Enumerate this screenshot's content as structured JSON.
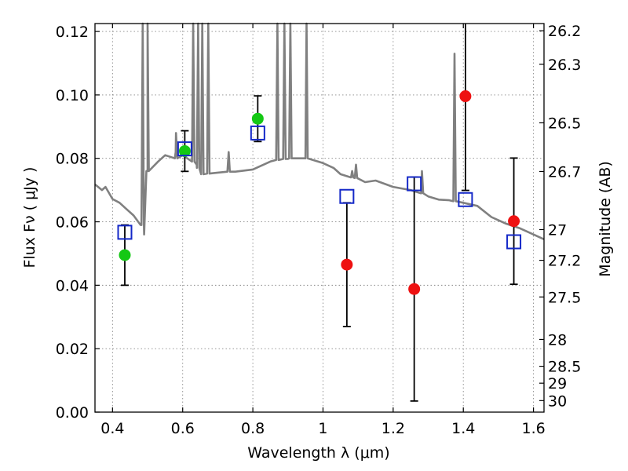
{
  "chart_data": {
    "type": "scatter",
    "title": "",
    "xlabel": "Wavelength  λ (μm)",
    "ylabel": "Flux  Fν  ( μJy )",
    "y2label": "Magnitude (AB)",
    "xlim": [
      0.35,
      1.63
    ],
    "ylim": [
      0.0,
      0.1225
    ],
    "grid": true,
    "x_ticks": [
      0.4,
      0.6,
      0.8,
      1.0,
      1.2,
      1.4,
      1.6
    ],
    "x_tick_labels": [
      "0.4",
      "0.6",
      "0.8",
      "1",
      "1.2",
      "1.4",
      "1.6"
    ],
    "y_ticks": [
      0.0,
      0.02,
      0.04,
      0.06,
      0.08,
      0.1,
      0.12
    ],
    "y_tick_labels": [
      "0.00",
      "0.02",
      "0.04",
      "0.06",
      "0.08",
      "0.10",
      "0.12"
    ],
    "y2_ticks": [
      26.2,
      26.3,
      26.5,
      26.7,
      27,
      27.2,
      27.5,
      28,
      28.5,
      29,
      30
    ],
    "y2_tick_labels": [
      "26.2",
      "26.3",
      "26.5",
      "26.7",
      "27",
      "27.2",
      "27.5",
      "28",
      "28.5",
      "29",
      "30"
    ],
    "colors": {
      "detection_green": "#14c814",
      "detection_red": "#ee1111",
      "model_box": "#1428c8",
      "errorbar": "#000000",
      "spectrum": "#808080",
      "grid": "#888888"
    },
    "observed_points": [
      {
        "x": 0.435,
        "y": 0.0495,
        "err": 0.0095,
        "color": "green"
      },
      {
        "x": 0.606,
        "y": 0.0823,
        "err": 0.0064,
        "color": "green"
      },
      {
        "x": 0.814,
        "y": 0.0925,
        "err": 0.0072,
        "color": "green"
      },
      {
        "x": 1.068,
        "y": 0.0465,
        "err": 0.0195,
        "color": "red"
      },
      {
        "x": 1.26,
        "y": 0.0388,
        "err": 0.0353,
        "color": "red"
      },
      {
        "x": 1.406,
        "y": 0.0996,
        "err": 0.0297,
        "color": "red"
      },
      {
        "x": 1.544,
        "y": 0.0602,
        "err": 0.0199,
        "color": "red"
      }
    ],
    "model_photometry": [
      {
        "x": 0.435,
        "y": 0.0567
      },
      {
        "x": 0.606,
        "y": 0.083
      },
      {
        "x": 0.814,
        "y": 0.088
      },
      {
        "x": 1.068,
        "y": 0.068
      },
      {
        "x": 1.26,
        "y": 0.072
      },
      {
        "x": 1.406,
        "y": 0.067
      },
      {
        "x": 1.544,
        "y": 0.0537
      }
    ],
    "model_spectrum": {
      "continuum": [
        [
          0.35,
          0.0718
        ],
        [
          0.37,
          0.07
        ],
        [
          0.38,
          0.071
        ],
        [
          0.4,
          0.0672
        ],
        [
          0.42,
          0.066
        ],
        [
          0.44,
          0.064
        ],
        [
          0.46,
          0.062
        ],
        [
          0.48,
          0.059
        ],
        [
          0.49,
          0.056
        ],
        [
          0.5,
          0.076
        ],
        [
          0.53,
          0.079
        ],
        [
          0.55,
          0.081
        ],
        [
          0.58,
          0.082
        ],
        [
          0.6,
          0.081
        ],
        [
          0.64,
          0.078
        ],
        [
          0.66,
          0.075
        ],
        [
          0.7,
          0.0755
        ],
        [
          0.75,
          0.0758
        ],
        [
          0.8,
          0.0765
        ],
        [
          0.85,
          0.079
        ],
        [
          0.9,
          0.0798
        ],
        [
          0.95,
          0.08
        ],
        [
          1.0,
          0.0785
        ],
        [
          1.03,
          0.077
        ],
        [
          1.05,
          0.075
        ],
        [
          1.08,
          0.074
        ],
        [
          1.12,
          0.0725
        ],
        [
          1.15,
          0.073
        ],
        [
          1.18,
          0.0718
        ],
        [
          1.2,
          0.071
        ],
        [
          1.25,
          0.07
        ],
        [
          1.28,
          0.069
        ],
        [
          1.3,
          0.068
        ],
        [
          1.33,
          0.067
        ],
        [
          1.36,
          0.0668
        ],
        [
          1.4,
          0.066
        ],
        [
          1.44,
          0.065
        ],
        [
          1.48,
          0.0615
        ],
        [
          1.52,
          0.0595
        ],
        [
          1.56,
          0.058
        ],
        [
          1.6,
          0.056
        ],
        [
          1.63,
          0.0545
        ]
      ],
      "emission_lines": [
        {
          "x": 0.5,
          "base": 0.076,
          "peak": 0.1225
        },
        {
          "x": 0.486,
          "base": 0.059,
          "peak": 0.1225
        },
        {
          "x": 0.581,
          "base": 0.08,
          "peak": 0.088
        },
        {
          "x": 0.63,
          "base": 0.079,
          "peak": 0.1225
        },
        {
          "x": 0.644,
          "base": 0.077,
          "peak": 0.1225
        },
        {
          "x": 0.656,
          "base": 0.075,
          "peak": 0.1225
        },
        {
          "x": 0.673,
          "base": 0.0752,
          "peak": 0.1225
        },
        {
          "x": 0.731,
          "base": 0.0758,
          "peak": 0.082
        },
        {
          "x": 0.87,
          "base": 0.0795,
          "peak": 0.1225
        },
        {
          "x": 0.89,
          "base": 0.0798,
          "peak": 0.1225
        },
        {
          "x": 0.907,
          "base": 0.08,
          "peak": 0.1225
        },
        {
          "x": 0.953,
          "base": 0.08,
          "peak": 0.1225
        },
        {
          "x": 1.083,
          "base": 0.074,
          "peak": 0.076
        },
        {
          "x": 1.094,
          "base": 0.0738,
          "peak": 0.078
        },
        {
          "x": 1.282,
          "base": 0.069,
          "peak": 0.076
        },
        {
          "x": 1.375,
          "base": 0.0665,
          "peak": 0.113
        }
      ]
    }
  }
}
